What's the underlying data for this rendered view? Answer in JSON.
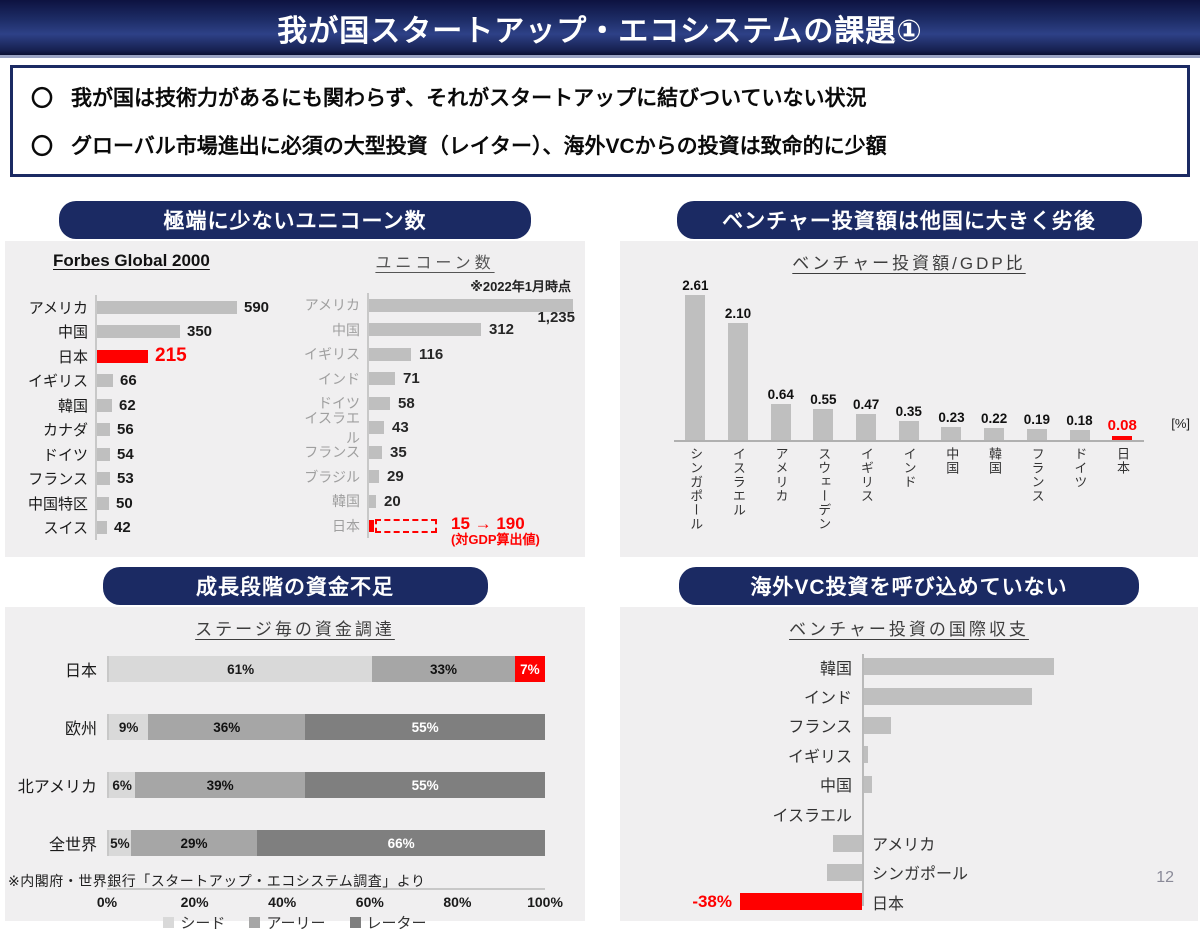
{
  "title": "我が国スタートアップ・エコシステムの課題①",
  "bullet_marker": "〇",
  "bullets": [
    "我が国は技術力があるにも関わらず、それがスタートアップに結びついていない状況",
    "グローバル市場進出に必須の大型投資（レイター）、海外VCからの投資は致命的に少額"
  ],
  "panels": {
    "unicorn": {
      "header": "極端に少ないユニコーン数"
    },
    "vc_gdp": {
      "header": "ベンチャー投資額は他国に大きく劣後"
    },
    "stage": {
      "header": "成長段階の資金不足"
    },
    "balance": {
      "header": "海外VC投資を呼び込めていない"
    }
  },
  "colors": {
    "navy": "#1b2a63",
    "red": "#ff0000",
    "bar_gray": "#bfbfbf",
    "seed_gray": "#d9d9d9",
    "early_gray": "#a6a6a6",
    "later_gray": "#7f7f7f",
    "panel_bg": "#f0eff0"
  },
  "footer": {
    "source": "※内閣府・世界銀行「スタートアップ・エコシステム調査」より",
    "page": "12"
  },
  "chart_data": [
    {
      "id": "forbes_global_2000",
      "type": "bar",
      "orientation": "horizontal",
      "title": "Forbes Global 2000",
      "categories": [
        "アメリカ",
        "中国",
        "日本",
        "イギリス",
        "韓国",
        "カナダ",
        "ドイツ",
        "フランス",
        "中国特区",
        "スイス"
      ],
      "values": [
        590,
        350,
        215,
        66,
        62,
        56,
        54,
        53,
        50,
        42
      ],
      "highlight_index": 2,
      "highlight_color": "#ff0000"
    },
    {
      "id": "unicorn_count",
      "type": "bar",
      "orientation": "horizontal",
      "title": "ユニコーン数",
      "note": "※2022年1月時点",
      "categories": [
        "アメリカ",
        "中国",
        "イギリス",
        "インド",
        "ドイツ",
        "イスラエル",
        "フランス",
        "ブラジル",
        "韓国",
        "日本"
      ],
      "values": [
        1235,
        312,
        116,
        71,
        58,
        43,
        35,
        29,
        20,
        15
      ],
      "japan": {
        "current": 15,
        "projected": 190,
        "label": "15 → 190",
        "sub_label": "(対GDP算出値)"
      },
      "highlight_index": 9,
      "highlight_color": "#ff0000"
    },
    {
      "id": "vc_investment_to_gdp",
      "type": "bar",
      "orientation": "vertical",
      "title": "ベンチャー投資額/GDP比",
      "unit": "[%]",
      "categories": [
        "シンガポール",
        "イスラエル",
        "アメリカ",
        "スウェーデン",
        "イギリス",
        "インド",
        "中国",
        "韓国",
        "フランス",
        "ドイツ",
        "日本"
      ],
      "values": [
        2.61,
        2.1,
        0.64,
        0.55,
        0.47,
        0.35,
        0.23,
        0.22,
        0.19,
        0.18,
        0.08
      ],
      "highlight_index": 10,
      "highlight_color": "#ff0000"
    },
    {
      "id": "funding_by_stage",
      "type": "bar",
      "stacked": true,
      "orientation": "horizontal",
      "title": "ステージ毎の資金調達",
      "categories": [
        "日本",
        "欧州",
        "北アメリカ",
        "全世界"
      ],
      "series": [
        {
          "name": "シード",
          "values": [
            61,
            9,
            6,
            5
          ]
        },
        {
          "name": "アーリー",
          "values": [
            33,
            36,
            39,
            29
          ]
        },
        {
          "name": "レーター",
          "values": [
            7,
            55,
            55,
            66
          ]
        }
      ],
      "value_suffix": "%",
      "x_ticks": [
        "0%",
        "20%",
        "40%",
        "60%",
        "80%",
        "100%"
      ],
      "xlim": [
        0,
        100
      ],
      "legend_position": "bottom",
      "highlight": {
        "category": "日本",
        "series": "レーター",
        "color": "#ff0000"
      }
    },
    {
      "id": "vc_international_balance",
      "type": "bar",
      "orientation": "horizontal",
      "title": "ベンチャー投資の国際収支",
      "categories": [
        "韓国",
        "インド",
        "フランス",
        "イギリス",
        "中国",
        "イスラエル",
        "アメリカ",
        "シンガポール",
        "日本"
      ],
      "values": [
        60,
        53,
        9,
        2,
        3,
        0,
        -9,
        -11,
        -38
      ],
      "value_labels": [
        "",
        "",
        "",
        "",
        "",
        "",
        "",
        "",
        "-38%"
      ],
      "highlight_index": 8,
      "highlight_color": "#ff0000"
    }
  ]
}
